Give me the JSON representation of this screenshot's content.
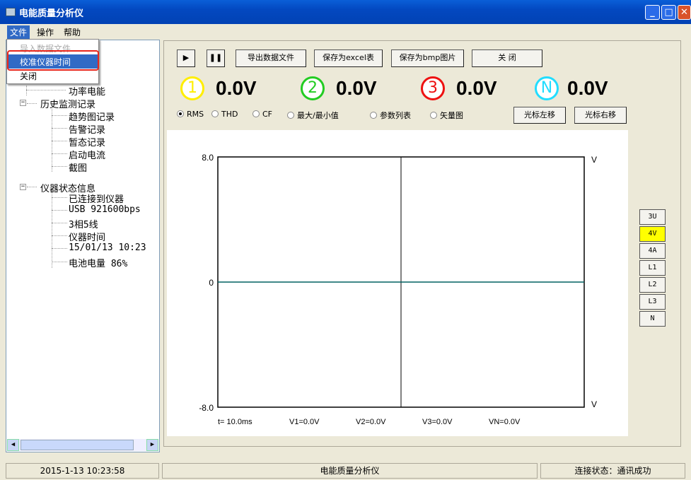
{
  "window": {
    "title": "电能质量分析仪"
  },
  "menu": {
    "file": "文件",
    "operate": "操作",
    "help": "帮助"
  },
  "dropdown": {
    "import": "导入数据文件",
    "calibrate": "校准仪器时间",
    "close": "关闭"
  },
  "tree": {
    "power_energy": "功率电能",
    "history": "历史监测记录",
    "trend": "趋势图记录",
    "alarm": "告警记录",
    "transient": "暂态记录",
    "inrush": "启动电流",
    "screenshot": "截图",
    "status": "仪器状态信息",
    "connected": "已连接到仪器",
    "usb": "USB 921600bps",
    "wiring": "3相5线",
    "time_label": "仪器时间",
    "time_value": "15/01/13 10:23",
    "battery": "电池电量 86%"
  },
  "toolbar": {
    "play": "▶",
    "pause": "❚❚",
    "export": "导出数据文件",
    "excel": "保存为excel表",
    "bmp": "保存为bmp图片",
    "close": "关  闭"
  },
  "readouts": [
    {
      "label": "1",
      "value": "0.0V",
      "color": "#ffee00"
    },
    {
      "label": "2",
      "value": "0.0V",
      "color": "#22cc22"
    },
    {
      "label": "3",
      "value": "0.0V",
      "color": "#ee1111"
    },
    {
      "label": "N",
      "value": "0.0V",
      "color": "#22ddff"
    }
  ],
  "modes": {
    "rms": "RMS",
    "thd": "THD",
    "cf": "CF",
    "maxmin": "最大/最小值",
    "params": "参数列表",
    "vector": "矢量图"
  },
  "cursor": {
    "left": "光标左移",
    "right": "光标右移"
  },
  "chart_data": {
    "type": "line",
    "ylim": [
      -8.0,
      8.0
    ],
    "yticks": [
      "8.0",
      "0",
      "-8.0"
    ],
    "unit_top": "V",
    "unit_bottom": "V",
    "series": [
      {
        "values": [
          0,
          0
        ]
      }
    ],
    "readouts": {
      "t": "t= 10.0ms",
      "v1": "V1=0.0V",
      "v2": "V2=0.0V",
      "v3": "V3=0.0V",
      "vn": "VN=0.0V"
    }
  },
  "side_buttons": [
    "3U",
    "4V",
    "4A",
    "L1",
    "L2",
    "L3",
    "N"
  ],
  "side_selected": "4V",
  "status": {
    "datetime": "2015-1-13 10:23:58",
    "app": "电能质量分析仪",
    "conn": "连接状态：通讯成功"
  }
}
